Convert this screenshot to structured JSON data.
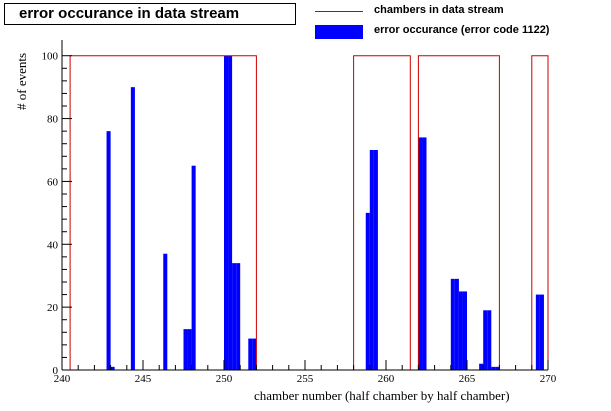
{
  "chart_data": {
    "type": "bar",
    "title": "error occurance in data stream",
    "xlabel": "chamber number (half chamber by half chamber)",
    "ylabel": "# of events",
    "xlim": [
      240,
      270
    ],
    "ylim": [
      0,
      105
    ],
    "x_ticks": [
      "240",
      "245",
      "250",
      "255",
      "260",
      "265",
      "270"
    ],
    "y_ticks": [
      "0",
      "20",
      "40",
      "60",
      "80",
      "100"
    ],
    "legend_position": "top-right",
    "legend": [
      {
        "label": "chambers in data stream",
        "style": "line",
        "color": "#cc0000"
      },
      {
        "label": "error occurance (error code 1122)",
        "style": "fill",
        "color": "#0000ff"
      }
    ],
    "series": [
      {
        "name": "chambers in data stream",
        "kind": "outline",
        "color": "#cc0000",
        "segments": [
          {
            "x_start": 240.5,
            "x_end": 252.0,
            "value": 100
          },
          {
            "x_start": 258.0,
            "x_end": 261.5,
            "value": 100
          },
          {
            "x_start": 262.0,
            "x_end": 267.0,
            "value": 100
          },
          {
            "x_start": 269.0,
            "x_end": 270.0,
            "value": 100
          }
        ]
      },
      {
        "name": "error occurance (error code 1122)",
        "kind": "histogram",
        "color": "#0000ff",
        "bin_width": 0.25,
        "bins": [
          {
            "x": 242.75,
            "value": 76
          },
          {
            "x": 243.0,
            "value": 1
          },
          {
            "x": 244.25,
            "value": 90
          },
          {
            "x": 246.25,
            "value": 37
          },
          {
            "x": 247.5,
            "value": 13
          },
          {
            "x": 247.75,
            "value": 13
          },
          {
            "x": 248.0,
            "value": 65
          },
          {
            "x": 250.0,
            "value": 100
          },
          {
            "x": 250.25,
            "value": 100
          },
          {
            "x": 250.5,
            "value": 34
          },
          {
            "x": 250.75,
            "value": 34
          },
          {
            "x": 251.5,
            "value": 10
          },
          {
            "x": 251.75,
            "value": 10
          },
          {
            "x": 258.75,
            "value": 50
          },
          {
            "x": 259.0,
            "value": 70
          },
          {
            "x": 259.25,
            "value": 70
          },
          {
            "x": 262.0,
            "value": 74
          },
          {
            "x": 262.25,
            "value": 74
          },
          {
            "x": 264.0,
            "value": 29
          },
          {
            "x": 264.25,
            "value": 29
          },
          {
            "x": 264.5,
            "value": 25
          },
          {
            "x": 264.75,
            "value": 25
          },
          {
            "x": 265.75,
            "value": 2
          },
          {
            "x": 266.0,
            "value": 19
          },
          {
            "x": 266.25,
            "value": 19
          },
          {
            "x": 266.5,
            "value": 1
          },
          {
            "x": 266.75,
            "value": 1
          },
          {
            "x": 269.25,
            "value": 24
          },
          {
            "x": 269.5,
            "value": 24
          }
        ]
      }
    ],
    "grid": false
  }
}
